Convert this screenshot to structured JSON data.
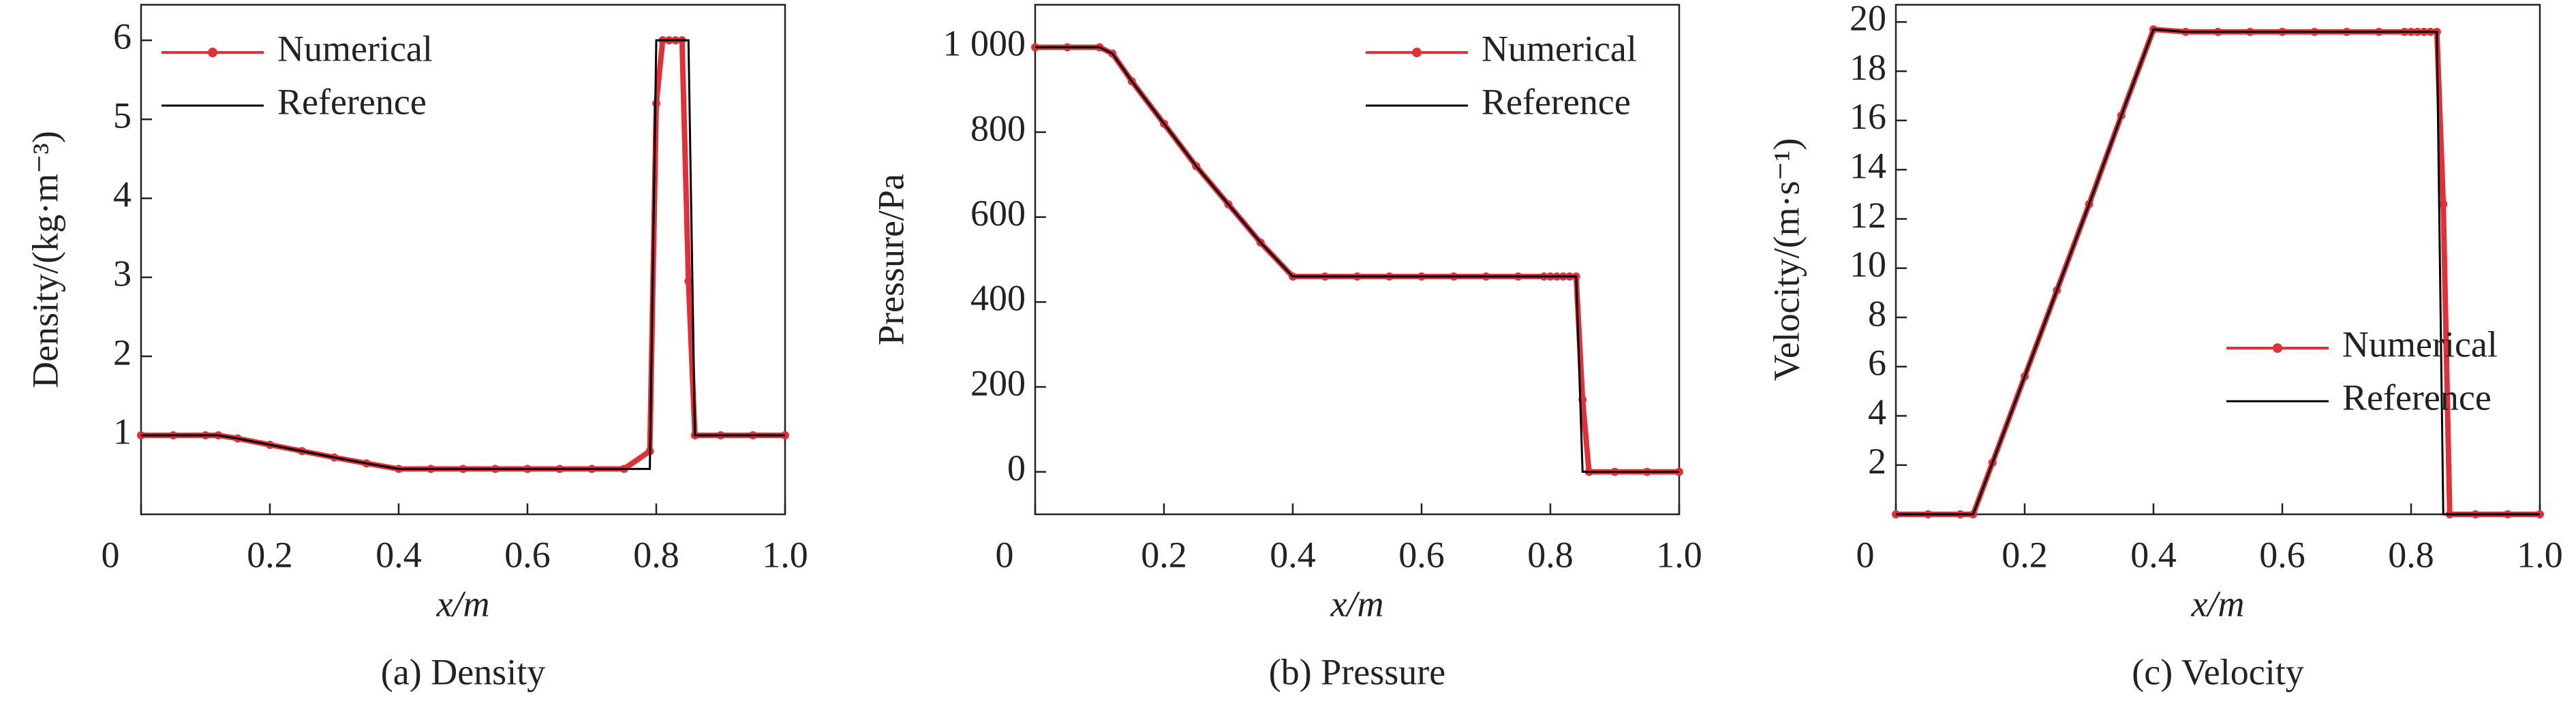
{
  "chart_data": [
    {
      "type": "line",
      "title": "(a) Density",
      "xlabel": "x/m",
      "ylabel": "Density/(kg·m⁻³)",
      "x": [
        0,
        0.05,
        0.1,
        0.12,
        0.15,
        0.2,
        0.25,
        0.3,
        0.35,
        0.4,
        0.45,
        0.5,
        0.55,
        0.6,
        0.65,
        0.7,
        0.75,
        0.79,
        0.8,
        0.81,
        0.82,
        0.83,
        0.84,
        0.85,
        0.86,
        0.9,
        0.95,
        1.0
      ],
      "series": [
        {
          "name": "Numerical",
          "color": "#e0303a",
          "marker": "o",
          "values": [
            1,
            1,
            1,
            1,
            0.96,
            0.88,
            0.8,
            0.72,
            0.645,
            0.575,
            0.575,
            0.575,
            0.575,
            0.575,
            0.575,
            0.575,
            0.575,
            0.8,
            5.2,
            6.0,
            6.0,
            6.0,
            6.0,
            2.95,
            1.0,
            1.0,
            1.0,
            1.0
          ]
        },
        {
          "name": "Reference",
          "color": "#000000",
          "values": [
            1,
            1,
            1,
            1,
            0.96,
            0.88,
            0.8,
            0.72,
            0.645,
            0.575,
            0.575,
            0.575,
            0.575,
            0.575,
            0.575,
            0.575,
            0.575,
            0.575,
            6.0,
            6.0,
            6.0,
            6.0,
            6.0,
            6.0,
            1.0,
            1.0,
            1.0,
            1.0
          ]
        }
      ],
      "xlim": [
        0,
        1
      ],
      "xticks": [
        0,
        0.2,
        0.4,
        0.6,
        0.8,
        {
          "value": 1,
          "label": "1.0"
        }
      ],
      "ylim": [
        0,
        6.45
      ],
      "yticks": [
        1,
        2,
        3,
        4,
        5,
        6
      ],
      "legend": "upper left"
    },
    {
      "type": "line",
      "title": "(b) Pressure",
      "xlabel": "x/m",
      "ylabel": "Pressure/Pa",
      "x": [
        0,
        0.05,
        0.1,
        0.12,
        0.15,
        0.2,
        0.25,
        0.3,
        0.35,
        0.4,
        0.45,
        0.5,
        0.55,
        0.6,
        0.65,
        0.7,
        0.75,
        0.79,
        0.8,
        0.81,
        0.82,
        0.83,
        0.84,
        0.85,
        0.86,
        0.9,
        0.95,
        1.0
      ],
      "series": [
        {
          "name": "Numerical",
          "color": "#e0303a",
          "marker": "o",
          "values": [
            1000,
            1000,
            1000,
            985,
            920,
            820,
            720,
            630,
            540,
            460,
            460,
            460,
            460,
            460,
            460,
            460,
            460,
            460,
            460,
            460,
            460,
            460,
            460,
            170,
            0,
            0,
            0,
            0
          ]
        },
        {
          "name": "Reference",
          "color": "#000000",
          "values": [
            1000,
            1000,
            1000,
            985,
            920,
            820,
            720,
            630,
            540,
            460,
            460,
            460,
            460,
            460,
            460,
            460,
            460,
            460,
            460,
            460,
            460,
            460,
            460,
            0,
            0,
            0,
            0,
            0
          ]
        }
      ],
      "xlim": [
        0,
        1
      ],
      "xticks": [
        0,
        0.2,
        0.4,
        0.6,
        0.8,
        {
          "value": 1,
          "label": "1.0"
        }
      ],
      "ylim": [
        -100,
        1100
      ],
      "yticks": [
        0,
        200,
        400,
        600,
        800,
        {
          "value": 1000,
          "label": "1 000"
        }
      ],
      "legend": "upper right"
    },
    {
      "type": "line",
      "title": "(c) Velocity",
      "xlabel": "x/m",
      "ylabel": "Velocity/(m·s⁻¹)",
      "x": [
        0,
        0.05,
        0.1,
        0.12,
        0.15,
        0.2,
        0.25,
        0.3,
        0.35,
        0.4,
        0.45,
        0.5,
        0.55,
        0.6,
        0.65,
        0.7,
        0.75,
        0.79,
        0.8,
        0.81,
        0.82,
        0.83,
        0.84,
        0.85,
        0.86,
        0.9,
        0.95,
        1.0
      ],
      "series": [
        {
          "name": "Numerical",
          "color": "#e0303a",
          "marker": "o",
          "values": [
            0,
            0,
            0,
            0,
            2.1,
            5.6,
            9.1,
            12.6,
            16.2,
            19.7,
            19.6,
            19.6,
            19.6,
            19.6,
            19.6,
            19.6,
            19.6,
            19.6,
            19.6,
            19.6,
            19.6,
            19.6,
            19.6,
            12.6,
            0,
            0,
            0,
            0
          ]
        },
        {
          "name": "Reference",
          "color": "#000000",
          "values": [
            0,
            0,
            0,
            0,
            2.1,
            5.6,
            9.1,
            12.6,
            16.2,
            19.7,
            19.6,
            19.6,
            19.6,
            19.6,
            19.6,
            19.6,
            19.6,
            19.6,
            19.6,
            19.6,
            19.6,
            19.6,
            19.6,
            0,
            0,
            0,
            0,
            0
          ]
        }
      ],
      "xlim": [
        0,
        1
      ],
      "xticks": [
        0,
        0.2,
        0.4,
        0.6,
        0.8,
        {
          "value": 1,
          "label": "1.0"
        }
      ],
      "ylim": [
        0,
        20.7
      ],
      "yticks": [
        2,
        4,
        6,
        8,
        10,
        12,
        14,
        16,
        18,
        20
      ],
      "legend": "center right"
    }
  ]
}
